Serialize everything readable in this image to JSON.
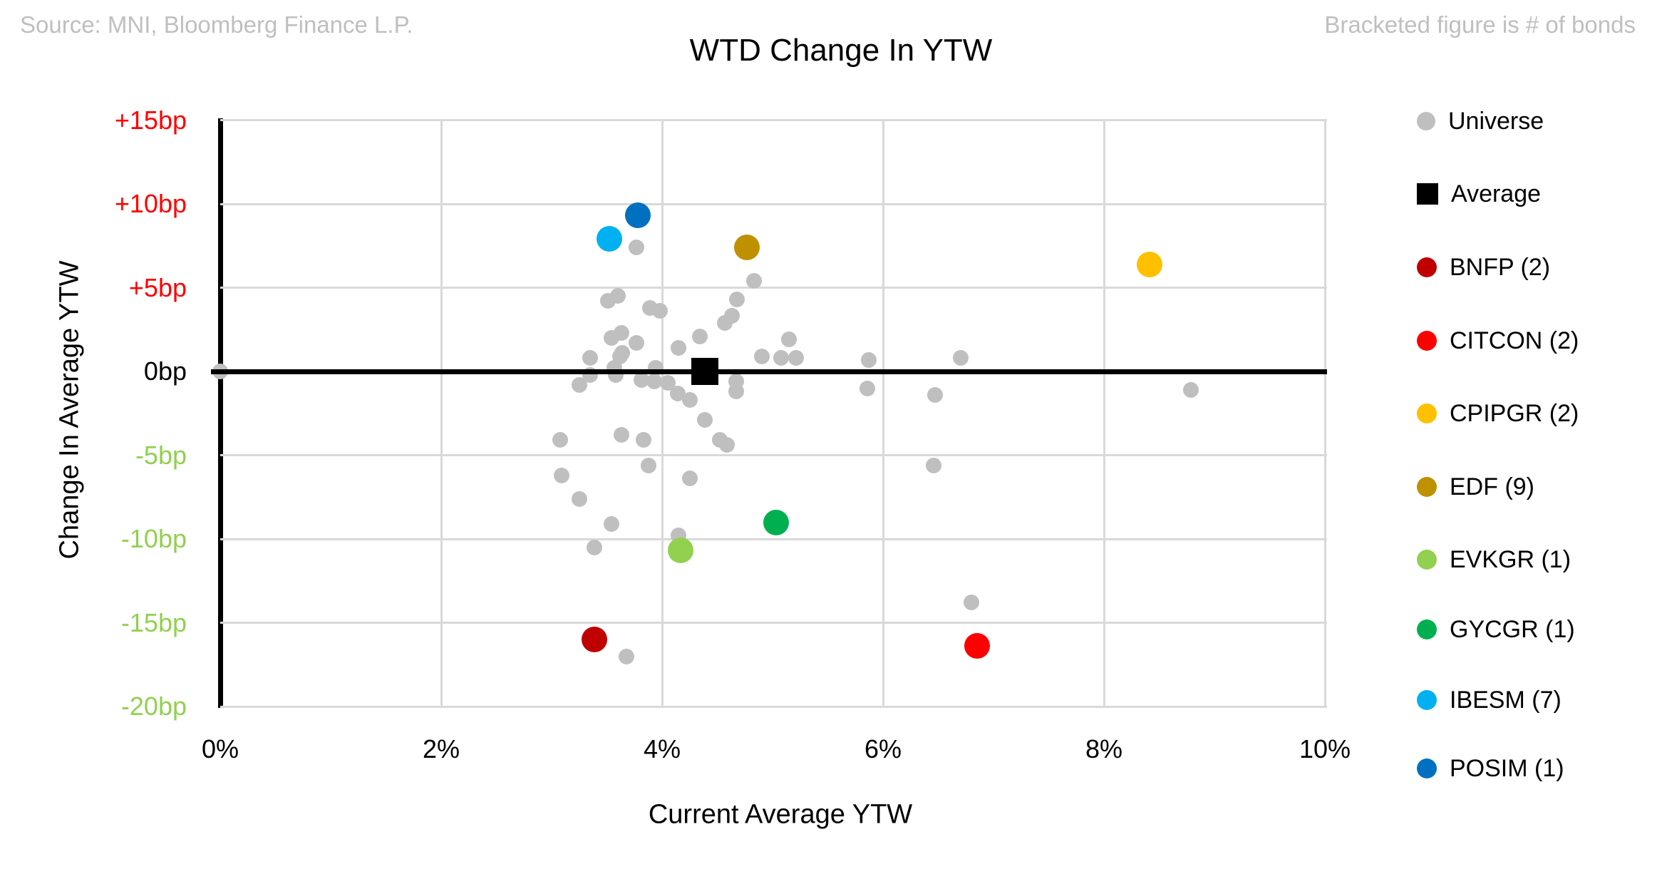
{
  "header": {
    "source_note": "Source: MNI, Bloomberg Finance L.P.",
    "right_note": "Bracketed figure is # of bonds"
  },
  "chart_data": {
    "type": "scatter",
    "title": "WTD Change In YTW",
    "xlabel": "Current Average YTW",
    "ylabel": "Change In Average YTW",
    "xlim": [
      0,
      10
    ],
    "ylim": [
      -20,
      15
    ],
    "grid": true,
    "legend_position": "right",
    "x_ticks": [
      {
        "value": 0,
        "label": "0%"
      },
      {
        "value": 2,
        "label": "2%"
      },
      {
        "value": 4,
        "label": "4%"
      },
      {
        "value": 6,
        "label": "6%"
      },
      {
        "value": 8,
        "label": "8%"
      },
      {
        "value": 10,
        "label": "10%"
      }
    ],
    "y_ticks": [
      {
        "value": 15,
        "label": "+15bp",
        "color": "#FF0000"
      },
      {
        "value": 10,
        "label": "+10bp",
        "color": "#FF0000"
      },
      {
        "value": 5,
        "label": "+5bp",
        "color": "#FF0000"
      },
      {
        "value": 0,
        "label": "0bp",
        "color": "#000000"
      },
      {
        "value": -5,
        "label": "-5bp",
        "color": "#92D050"
      },
      {
        "value": -10,
        "label": "-10bp",
        "color": "#92D050"
      },
      {
        "value": -15,
        "label": "-15bp",
        "color": "#92D050"
      },
      {
        "value": -20,
        "label": "-20bp",
        "color": "#92D050"
      }
    ],
    "series": [
      {
        "name": "Universe",
        "marker": "circle",
        "color": "#BFBFBF",
        "radius": 11,
        "points": [
          [
            0.0,
            0.0
          ],
          [
            3.77,
            7.4
          ],
          [
            4.83,
            5.4
          ],
          [
            3.51,
            4.2
          ],
          [
            3.6,
            4.5
          ],
          [
            3.89,
            3.8
          ],
          [
            3.98,
            3.6
          ],
          [
            4.68,
            4.3
          ],
          [
            4.63,
            3.3
          ],
          [
            4.57,
            2.9
          ],
          [
            4.34,
            2.1
          ],
          [
            3.63,
            2.3
          ],
          [
            3.54,
            2.0
          ],
          [
            3.77,
            1.7
          ],
          [
            5.15,
            1.9
          ],
          [
            3.64,
            1.1
          ],
          [
            4.15,
            1.4
          ],
          [
            3.35,
            0.8
          ],
          [
            3.62,
            0.9
          ],
          [
            4.9,
            0.9
          ],
          [
            5.08,
            0.8
          ],
          [
            5.21,
            0.8
          ],
          [
            3.94,
            0.2
          ],
          [
            3.57,
            0.2
          ],
          [
            5.87,
            0.7
          ],
          [
            6.7,
            0.8
          ],
          [
            3.35,
            -0.2
          ],
          [
            3.58,
            -0.2
          ],
          [
            3.25,
            -0.8
          ],
          [
            3.81,
            -0.5
          ],
          [
            3.93,
            -0.6
          ],
          [
            4.05,
            -0.7
          ],
          [
            4.14,
            -1.3
          ],
          [
            4.25,
            -1.7
          ],
          [
            4.67,
            -0.6
          ],
          [
            4.67,
            -1.2
          ],
          [
            5.86,
            -1.0
          ],
          [
            6.47,
            -1.4
          ],
          [
            8.79,
            -1.1
          ],
          [
            4.39,
            -2.9
          ],
          [
            3.63,
            -3.8
          ],
          [
            3.83,
            -4.1
          ],
          [
            3.08,
            -4.1
          ],
          [
            4.52,
            -4.1
          ],
          [
            4.59,
            -4.4
          ],
          [
            3.88,
            -5.6
          ],
          [
            3.09,
            -6.2
          ],
          [
            4.25,
            -6.4
          ],
          [
            6.46,
            -5.6
          ],
          [
            3.25,
            -7.6
          ],
          [
            3.54,
            -9.1
          ],
          [
            4.15,
            -9.8
          ],
          [
            3.39,
            -10.5
          ],
          [
            6.8,
            -13.8
          ],
          [
            3.68,
            -17.0
          ]
        ]
      },
      {
        "name": "Average",
        "marker": "square",
        "color": "#000000",
        "half": 19,
        "points": [
          [
            4.39,
            0.0
          ]
        ]
      },
      {
        "name": "BNFP",
        "bonds": 2,
        "marker": "circle",
        "color": "#C00000",
        "radius": 18,
        "points": [
          [
            3.39,
            -16.0
          ]
        ]
      },
      {
        "name": "CITCON",
        "bonds": 2,
        "marker": "circle",
        "color": "#FF0000",
        "radius": 18,
        "points": [
          [
            6.85,
            -16.4
          ]
        ]
      },
      {
        "name": "CPIPGR",
        "bonds": 2,
        "marker": "circle",
        "color": "#FFC000",
        "radius": 18,
        "points": [
          [
            8.41,
            6.4
          ]
        ]
      },
      {
        "name": "EDF",
        "bonds": 9,
        "marker": "circle",
        "color": "#BF9000",
        "radius": 18,
        "points": [
          [
            4.77,
            7.4
          ]
        ]
      },
      {
        "name": "EVKGR",
        "bonds": 1,
        "marker": "circle",
        "color": "#92D050",
        "radius": 18,
        "points": [
          [
            4.17,
            -10.7
          ]
        ]
      },
      {
        "name": "GYCGR",
        "bonds": 1,
        "marker": "circle",
        "color": "#00B050",
        "radius": 18,
        "points": [
          [
            5.03,
            -9.0
          ]
        ]
      },
      {
        "name": "IBESM",
        "bonds": 7,
        "marker": "circle",
        "color": "#00B0F0",
        "radius": 18,
        "points": [
          [
            3.52,
            7.9
          ]
        ]
      },
      {
        "name": "POSIM",
        "bonds": 1,
        "marker": "circle",
        "color": "#0070C0",
        "radius": 18,
        "points": [
          [
            3.78,
            9.3
          ]
        ]
      }
    ],
    "legend": [
      {
        "series": "Universe",
        "display": "Universe"
      },
      {
        "series": "Average",
        "display": "Average"
      },
      {
        "series": "BNFP",
        "display": "BNFP  (2)"
      },
      {
        "series": "CITCON",
        "display": "CITCON  (2)"
      },
      {
        "series": "CPIPGR",
        "display": "CPIPGR  (2)"
      },
      {
        "series": "EDF",
        "display": "EDF  (9)"
      },
      {
        "series": "EVKGR",
        "display": "EVKGR  (1)"
      },
      {
        "series": "GYCGR",
        "display": "GYCGR  (1)"
      },
      {
        "series": "IBESM",
        "display": "IBESM  (7)"
      },
      {
        "series": "POSIM",
        "display": "POSIM  (1)"
      }
    ]
  }
}
